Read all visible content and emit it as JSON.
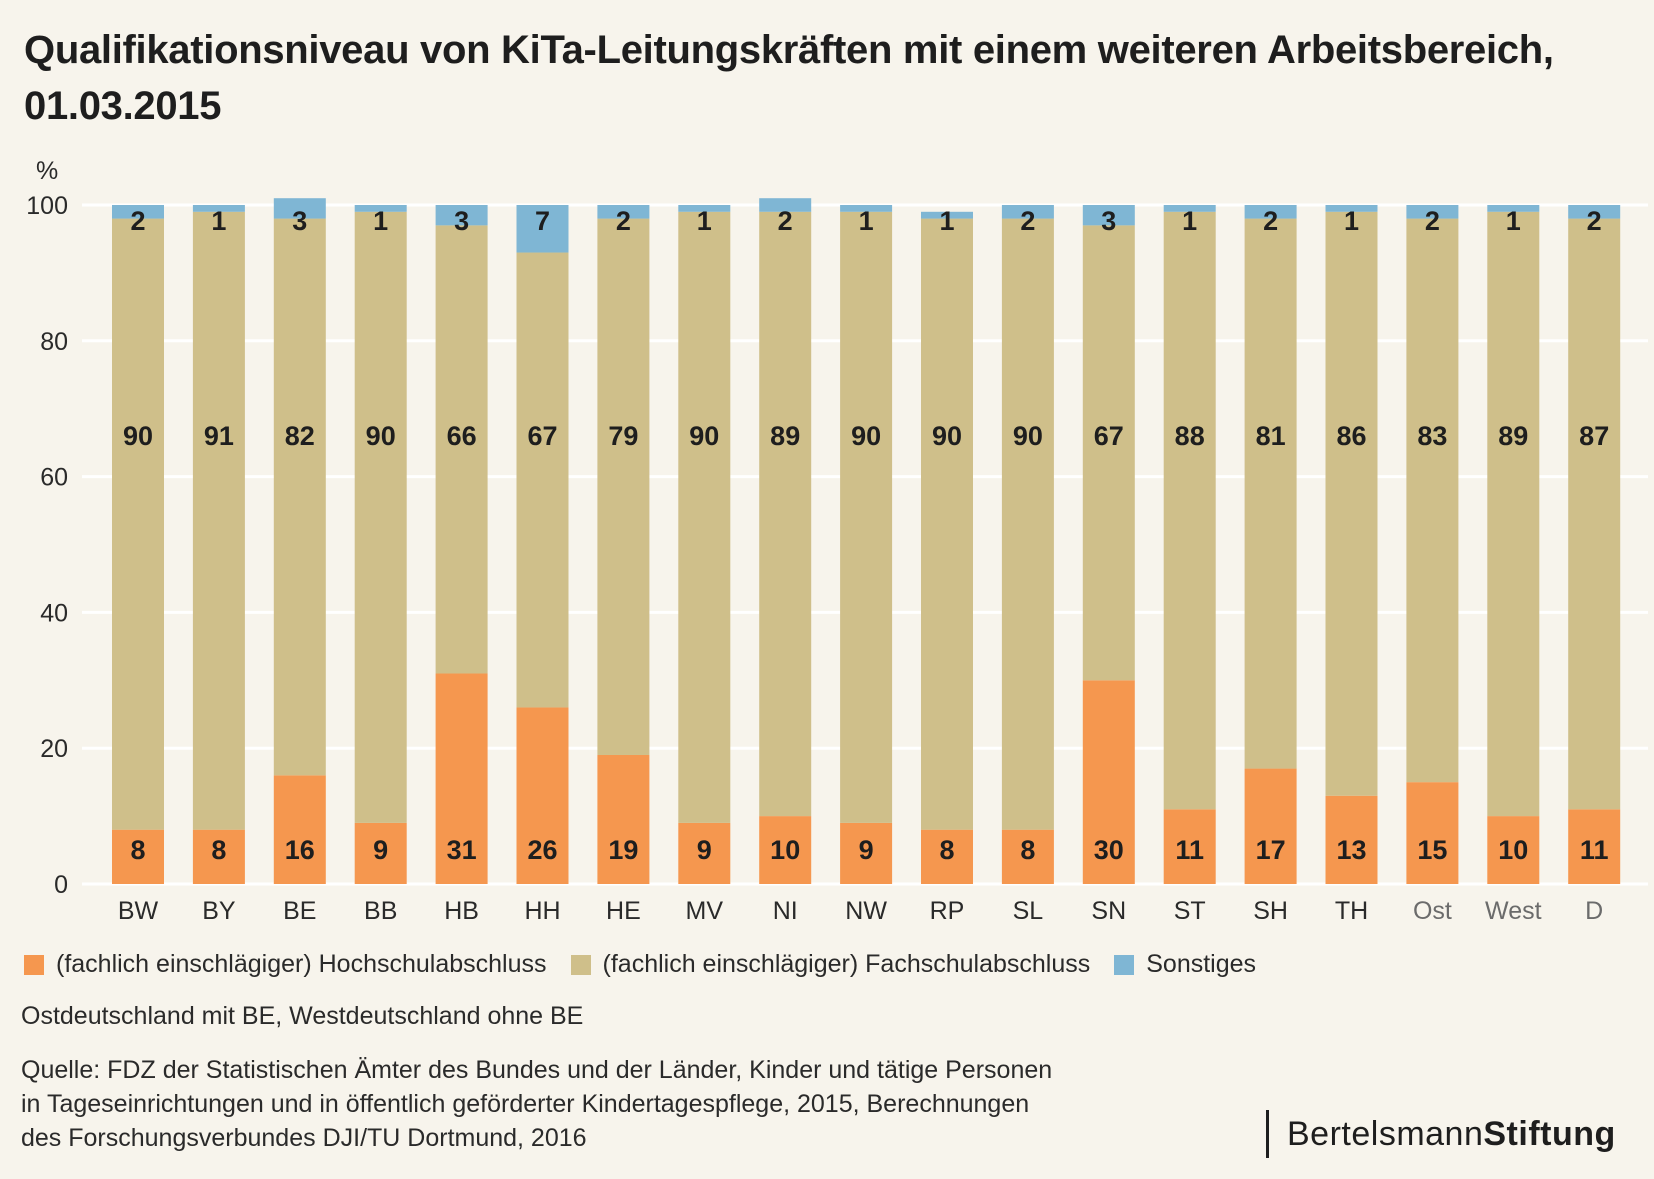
{
  "title": "Qualifikationsniveau von KiTa-Leitungskräften mit  einem weiteren Arbeitsbereich, 01.03.2015",
  "note": "Ostdeutschland mit BE, Westdeutschland ohne BE",
  "source": {
    "line1": "Quelle: FDZ der Statistischen Ämter des Bundes und der Länder, Kinder und tätige Personen",
    "line2": "in Tageseinrichtungen und in öffentlich geförderter Kindertagespflege, 2015, Berechnungen",
    "line3": "des Forschungsverbundes DJI/TU Dortmund, 2016"
  },
  "brand": {
    "part1": "Bertelsmann",
    "part2": "Stiftung"
  },
  "colors": {
    "hochschul": "#f5974f",
    "fachschul": "#cfbf8a",
    "sonstiges": "#7fb6d4",
    "background": "#f7f4ec",
    "grid": "#ffffff"
  },
  "chart_data": {
    "type": "bar",
    "stacked": true,
    "ylabel": "%",
    "ylim": [
      0,
      100
    ],
    "yticks": [
      0,
      20,
      40,
      60,
      80,
      100
    ],
    "grid": true,
    "legend_position": "bottom",
    "categories": [
      "BW",
      "BY",
      "BE",
      "BB",
      "HB",
      "HH",
      "HE",
      "MV",
      "NI",
      "NW",
      "RP",
      "SL",
      "SN",
      "ST",
      "SH",
      "TH",
      "Ost",
      "West",
      "D"
    ],
    "aggregate_categories": [
      "Ost",
      "West",
      "D"
    ],
    "series": [
      {
        "name": "(fachlich einschlägiger) Hochschulabschluss",
        "color_key": "hochschul",
        "values": [
          8,
          8,
          16,
          9,
          31,
          26,
          19,
          9,
          10,
          9,
          8,
          8,
          30,
          11,
          17,
          13,
          15,
          10,
          11
        ]
      },
      {
        "name": "(fachlich einschlägiger) Fachschulabschluss",
        "color_key": "fachschul",
        "values": [
          90,
          91,
          82,
          90,
          66,
          67,
          79,
          90,
          89,
          90,
          90,
          90,
          67,
          88,
          81,
          86,
          83,
          89,
          87
        ]
      },
      {
        "name": "Sonstiges",
        "color_key": "sonstiges",
        "values": [
          2,
          1,
          3,
          1,
          3,
          7,
          2,
          1,
          2,
          1,
          1,
          2,
          3,
          1,
          2,
          1,
          2,
          1,
          2
        ]
      }
    ]
  }
}
